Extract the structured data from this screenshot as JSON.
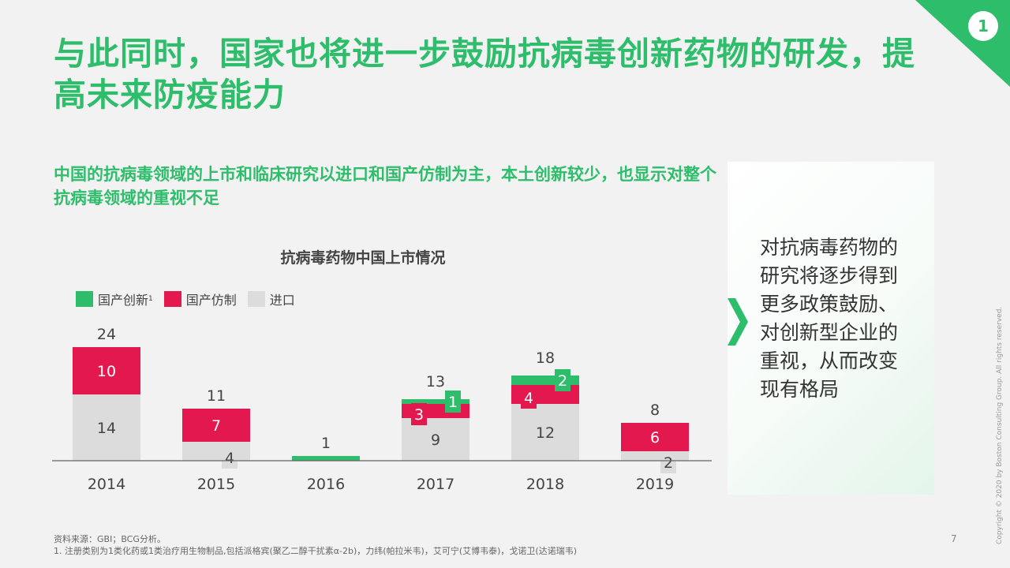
{
  "header": {
    "title": "与此同时，国家也将进一步鼓励抗病毒创新药物的研发，提高未来防疫能力",
    "section_number": "1"
  },
  "subtitle": "中国的抗病毒领域的上市和临床研究以进口和国产仿制为主，本土创新较少，也显示对整个抗病毒领域的重视不足",
  "chart_data": {
    "type": "bar",
    "stacked": true,
    "title": "抗病毒药物中国上市情况",
    "categories": [
      "2014",
      "2015",
      "2016",
      "2017",
      "2018",
      "2019"
    ],
    "series": [
      {
        "name": "进口",
        "values": [
          14,
          4,
          0,
          9,
          12,
          2
        ],
        "labels": [
          "14",
          "4",
          "",
          "9",
          "12",
          "2"
        ],
        "color": "#dcdcdc"
      },
      {
        "name": "国产仿制",
        "values": [
          10,
          7,
          0,
          3,
          4,
          6
        ],
        "labels": [
          "10",
          "7",
          "",
          "3",
          "4",
          "6"
        ],
        "color": "#e3184f"
      },
      {
        "name": "国产创新",
        "values": [
          0,
          0,
          1,
          1,
          2,
          0
        ],
        "labels": [
          "",
          "",
          "",
          "1",
          "2",
          ""
        ],
        "color": "#2ebd6b"
      }
    ],
    "totals": [
      "24",
      "11",
      "1",
      "13",
      "18",
      "8"
    ],
    "legend": {
      "placement": "top-left",
      "innovation_footnote_mark": "1"
    },
    "ylim": [
      0,
      26
    ],
    "grid": false
  },
  "side_panel": {
    "text": "对抗病毒药物的研究将逐步得到更多政策鼓励、对创新型企业的重视，从而改变现有格局"
  },
  "footer": {
    "source": "资料来源：GBI；BCG分析。",
    "note": "1. 注册类别为1类化药或1类治疗用生物制品,包括派格宾(聚乙二醇干扰素α-2b)，力纬(帕拉米韦)，艾可宁(艾博韦泰)，戈诺卫(达诺瑞韦)",
    "page": "7",
    "copyright": "Copyright © 2020 by Boston Consulting Group. All rights reserved."
  },
  "colors": {
    "accent": "#2ebd6b",
    "imitation": "#e3184f",
    "import": "#dcdcdc"
  }
}
